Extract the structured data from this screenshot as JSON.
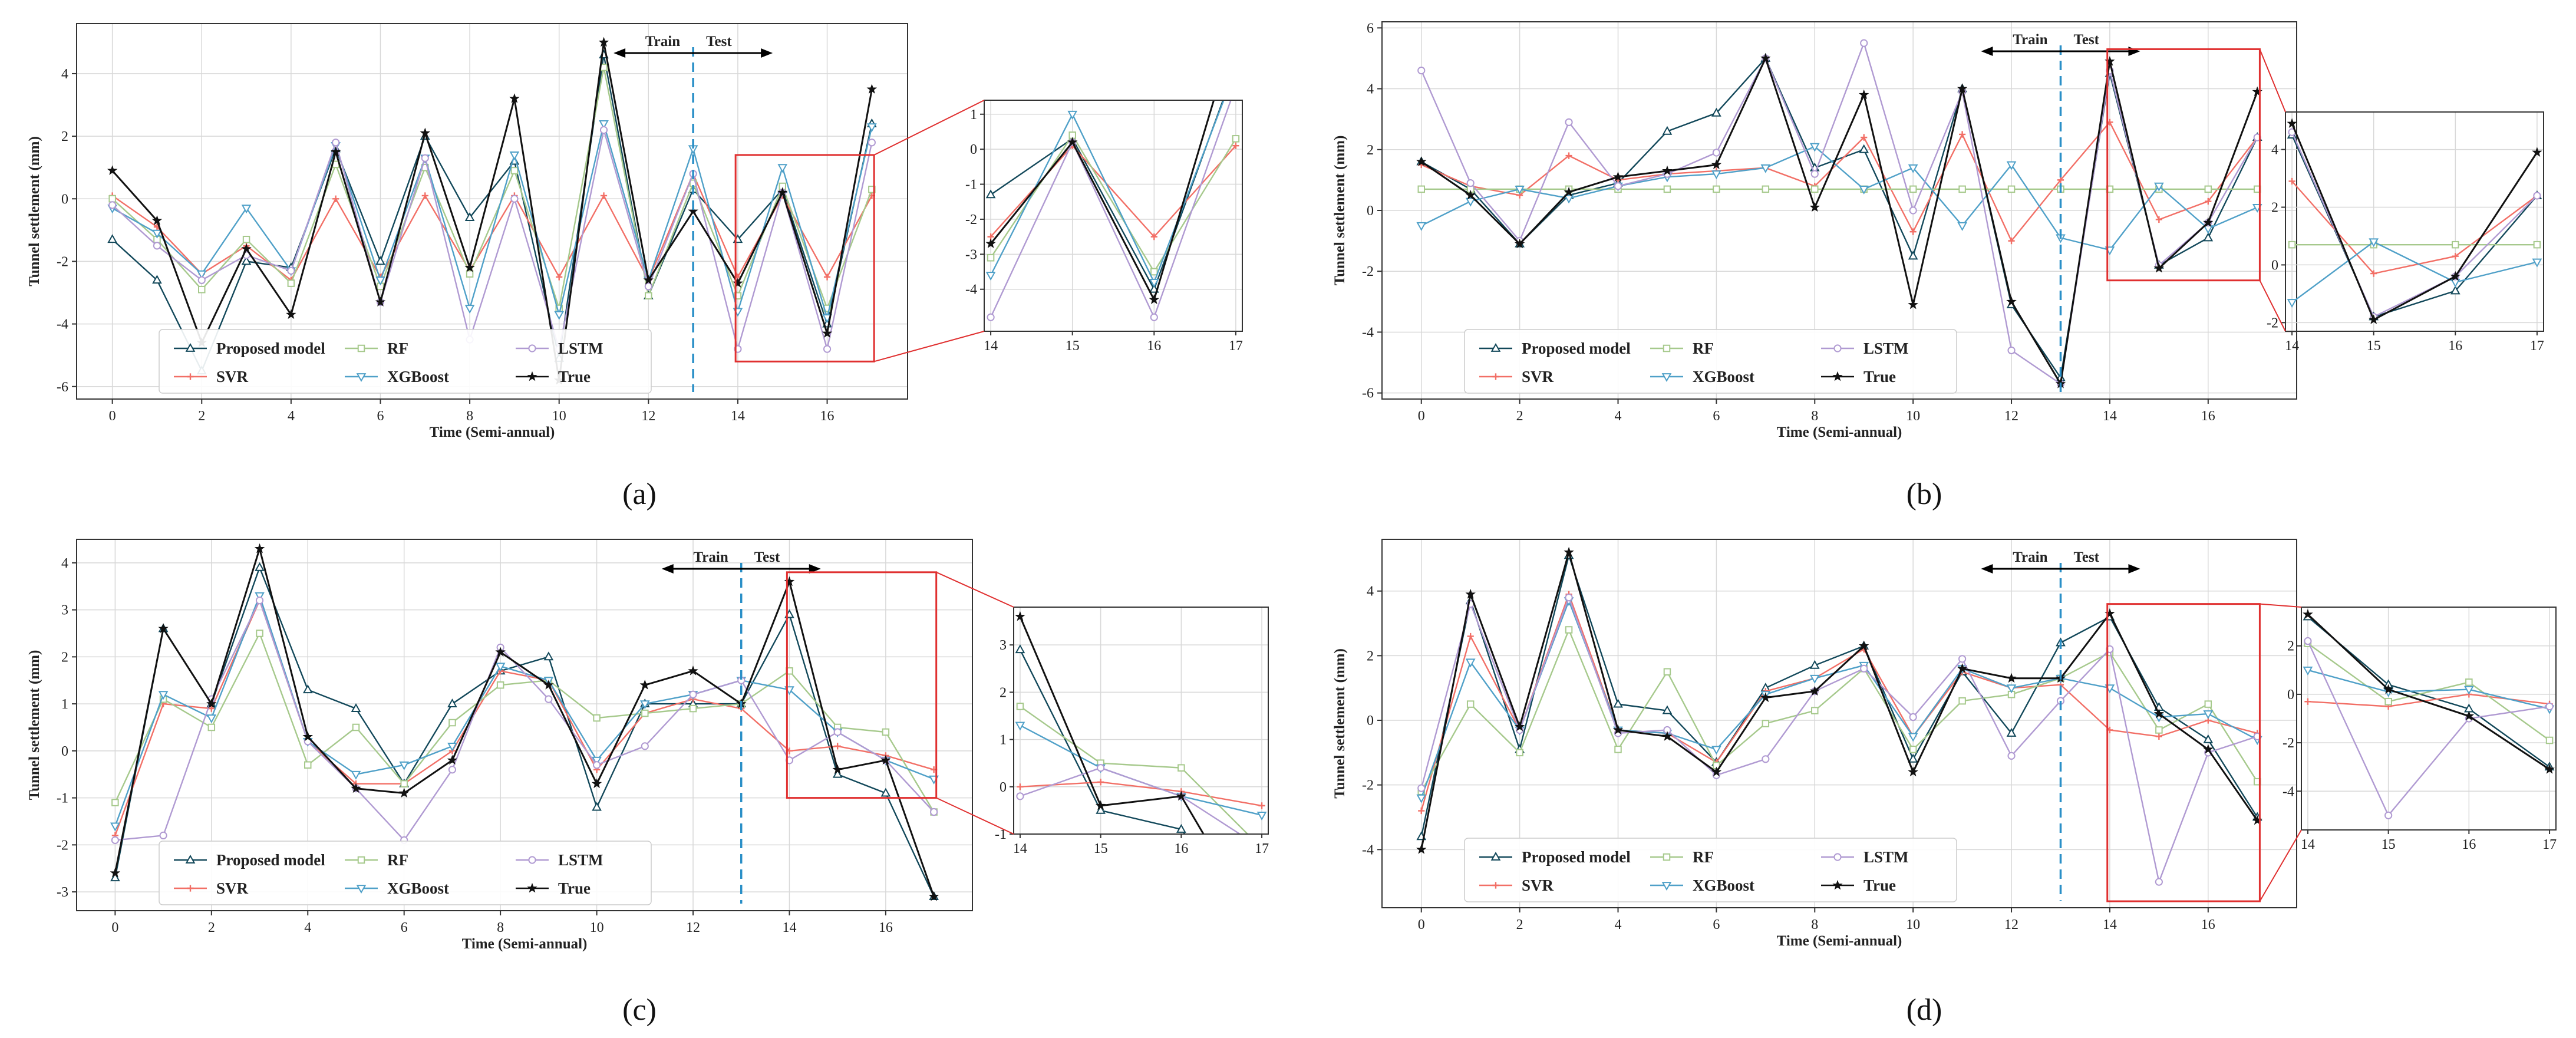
{
  "figure": {
    "series_names": [
      "Proposed model",
      "SVR",
      "RF",
      "XGBoost",
      "LSTM",
      "True"
    ],
    "series_colors": {
      "Proposed model": "#12485a",
      "SVR": "#f26f66",
      "RF": "#a6c98c",
      "XGBoost": "#4fa0c8",
      "LSTM": "#b09ad2",
      "True": "#111111"
    },
    "axis_color": "#333333",
    "grid_color": "#d8d8d8",
    "split_color": "#2a8fc7",
    "zoom_color": "#e03030"
  },
  "chart_data": [
    {
      "panel_label": "(a)",
      "type": "line",
      "xlabel": "Time (Semi-annual)",
      "ylabel": "Tunnel settlement (mm)",
      "xlim": [
        -0.8,
        17.8
      ],
      "ylim": [
        -6.4,
        5.6
      ],
      "xticks": [
        0,
        2,
        4,
        6,
        8,
        10,
        12,
        14,
        16
      ],
      "yticks": [
        -6,
        -4,
        -2,
        0,
        2,
        4
      ],
      "split_x": 13,
      "train_label": "Train",
      "test_label": "Test",
      "zoom": {
        "x_range": [
          14,
          17
        ],
        "ylim": [
          -5.2,
          1.4
        ],
        "xticks": [
          14,
          15,
          16,
          17
        ],
        "yticks": [
          -4,
          -3,
          -2,
          -1,
          0,
          1
        ]
      },
      "x": [
        0,
        1,
        2,
        3,
        4,
        5,
        6,
        7,
        8,
        9,
        10,
        11,
        12,
        13,
        14,
        15,
        16,
        17
      ],
      "series": [
        {
          "name": "Proposed model",
          "marker": "triangle",
          "values": [
            -1.3,
            -2.6,
            -5.5,
            -2.0,
            -2.2,
            1.6,
            -2.0,
            2.0,
            -0.6,
            1.2,
            -5.1,
            4.6,
            -3.1,
            0.3,
            -1.3,
            0.3,
            -4.0,
            2.4
          ]
        },
        {
          "name": "SVR",
          "marker": "plus",
          "values": [
            0.1,
            -0.9,
            -2.4,
            -1.5,
            -2.6,
            0.0,
            -2.5,
            0.1,
            -2.3,
            0.1,
            -2.5,
            0.1,
            -2.6,
            0.8,
            -2.5,
            0.1,
            -2.5,
            0.1
          ]
        },
        {
          "name": "RF",
          "marker": "square",
          "values": [
            0.0,
            -1.3,
            -2.9,
            -1.3,
            -2.7,
            1.1,
            -2.8,
            1.0,
            -2.4,
            0.9,
            -3.5,
            4.2,
            -3.1,
            0.5,
            -3.1,
            0.4,
            -3.5,
            0.3
          ]
        },
        {
          "name": "XGBoost",
          "marker": "triangle-down",
          "values": [
            -0.3,
            -1.1,
            -2.4,
            -0.3,
            -2.3,
            1.7,
            -2.6,
            1.3,
            -3.5,
            1.4,
            -3.7,
            2.4,
            -2.6,
            1.6,
            -3.6,
            1.0,
            -3.8,
            2.3
          ]
        },
        {
          "name": "LSTM",
          "marker": "circle",
          "values": [
            -0.2,
            -1.5,
            -2.6,
            -1.8,
            -2.3,
            1.8,
            -3.3,
            1.3,
            -4.5,
            0.0,
            -4.8,
            2.2,
            -2.8,
            0.8,
            -4.8,
            0.2,
            -4.8,
            1.8
          ]
        },
        {
          "name": "True",
          "marker": "star",
          "values": [
            0.9,
            -0.7,
            -4.6,
            -1.6,
            -3.7,
            1.5,
            -3.3,
            2.1,
            -2.2,
            3.2,
            -5.8,
            5.0,
            -2.6,
            -0.4,
            -2.7,
            0.2,
            -4.3,
            3.5
          ]
        }
      ]
    },
    {
      "panel_label": "(b)",
      "type": "line",
      "xlabel": "Time (Semi-annual)",
      "ylabel": "Tunnel settlement (mm)",
      "xlim": [
        -0.8,
        17.8
      ],
      "ylim": [
        -6.2,
        6.2
      ],
      "xticks": [
        0,
        2,
        4,
        6,
        8,
        10,
        12,
        14,
        16
      ],
      "yticks": [
        -6,
        -4,
        -2,
        0,
        2,
        4,
        6
      ],
      "split_x": 13,
      "train_label": "Train",
      "test_label": "Test",
      "zoom": {
        "x_range": [
          14,
          17
        ],
        "ylim": [
          -2.3,
          5.3
        ],
        "xticks": [
          14,
          15,
          16,
          17
        ],
        "yticks": [
          -2,
          0,
          2,
          4
        ]
      },
      "x": [
        0,
        1,
        2,
        3,
        4,
        5,
        6,
        7,
        8,
        9,
        10,
        11,
        12,
        13,
        14,
        15,
        16,
        17
      ],
      "series": [
        {
          "name": "Proposed model",
          "marker": "triangle",
          "values": [
            1.6,
            0.7,
            -1.1,
            0.5,
            0.9,
            2.6,
            3.2,
            5.0,
            1.4,
            2.0,
            -1.5,
            4.0,
            -3.1,
            -5.5,
            4.5,
            -1.8,
            -0.9,
            2.4
          ]
        },
        {
          "name": "SVR",
          "marker": "plus",
          "values": [
            1.5,
            0.8,
            0.5,
            1.8,
            1.0,
            1.2,
            1.3,
            1.4,
            0.8,
            2.4,
            -0.7,
            2.5,
            -1.0,
            1.0,
            2.9,
            -0.3,
            0.3,
            2.4
          ]
        },
        {
          "name": "RF",
          "marker": "square",
          "values": [
            0.7,
            0.7,
            0.7,
            0.7,
            0.7,
            0.7,
            0.7,
            0.7,
            0.7,
            0.7,
            0.7,
            0.7,
            0.7,
            0.7,
            0.7,
            0.7,
            0.7,
            0.7
          ]
        },
        {
          "name": "XGBoost",
          "marker": "triangle-down",
          "values": [
            -0.5,
            0.3,
            0.7,
            0.4,
            0.8,
            1.1,
            1.2,
            1.4,
            2.1,
            0.7,
            1.4,
            -0.5,
            1.5,
            -0.9,
            -1.3,
            0.8,
            -0.6,
            0.1
          ]
        },
        {
          "name": "LSTM",
          "marker": "circle",
          "values": [
            4.6,
            0.9,
            -1.0,
            2.9,
            0.8,
            1.2,
            1.9,
            5.0,
            1.2,
            5.5,
            0.0,
            3.9,
            -4.6,
            -5.7,
            4.6,
            -1.8,
            -0.4,
            2.4
          ]
        },
        {
          "name": "True",
          "marker": "star",
          "values": [
            1.6,
            0.5,
            -1.1,
            0.6,
            1.1,
            1.3,
            1.5,
            5.0,
            0.1,
            3.8,
            -3.1,
            4.0,
            -3.0,
            -5.7,
            4.9,
            -1.9,
            -0.4,
            3.9
          ]
        }
      ]
    },
    {
      "panel_label": "(c)",
      "type": "line",
      "xlabel": "Time (Semi-annual)",
      "ylabel": "Tunnel settlement (mm)",
      "xlim": [
        -0.8,
        17.8
      ],
      "ylim": [
        -3.4,
        4.5
      ],
      "xticks": [
        0,
        2,
        4,
        6,
        8,
        10,
        12,
        14,
        16
      ],
      "yticks": [
        -3,
        -2,
        -1,
        0,
        1,
        2,
        3,
        4
      ],
      "split_x": 13,
      "train_label": "Train",
      "test_label": "Test",
      "zoom": {
        "x_range": [
          14,
          17
        ],
        "ylim": [
          -1.0,
          3.8
        ],
        "xticks": [
          14,
          15,
          16,
          17
        ],
        "yticks": [
          -1,
          0,
          1,
          2,
          3
        ]
      },
      "x": [
        0,
        1,
        2,
        3,
        4,
        5,
        6,
        7,
        8,
        9,
        10,
        11,
        12,
        13,
        14,
        15,
        16,
        17
      ],
      "series": [
        {
          "name": "Proposed model",
          "marker": "triangle",
          "values": [
            -2.7,
            2.6,
            1.0,
            3.9,
            1.3,
            0.9,
            -0.7,
            1.0,
            1.7,
            2.0,
            -1.2,
            1.0,
            1.0,
            1.0,
            2.9,
            -0.5,
            -0.9,
            -3.1
          ]
        },
        {
          "name": "SVR",
          "marker": "plus",
          "values": [
            -1.8,
            1.0,
            0.9,
            3.2,
            0.2,
            -0.7,
            -0.7,
            0.0,
            1.7,
            1.5,
            -0.4,
            0.8,
            1.1,
            0.9,
            0.0,
            0.1,
            -0.1,
            -0.4
          ]
        },
        {
          "name": "RF",
          "marker": "square",
          "values": [
            -1.1,
            1.1,
            0.5,
            2.5,
            -0.3,
            0.5,
            -0.7,
            0.6,
            1.4,
            1.5,
            0.7,
            0.8,
            0.9,
            1.0,
            1.7,
            0.5,
            0.4,
            -1.3
          ]
        },
        {
          "name": "XGBoost",
          "marker": "triangle-down",
          "values": [
            -1.6,
            1.2,
            0.7,
            3.3,
            0.2,
            -0.5,
            -0.3,
            0.1,
            1.8,
            1.5,
            -0.2,
            1.0,
            1.2,
            1.5,
            1.3,
            0.4,
            -0.2,
            -0.6
          ]
        },
        {
          "name": "LSTM",
          "marker": "circle",
          "values": [
            -1.9,
            -1.8,
            1.1,
            3.2,
            0.2,
            -0.8,
            -1.9,
            -0.4,
            2.2,
            1.1,
            -0.3,
            0.1,
            1.2,
            1.5,
            -0.2,
            0.4,
            -0.2,
            -1.3
          ]
        },
        {
          "name": "True",
          "marker": "star",
          "values": [
            -2.6,
            2.6,
            1.0,
            4.3,
            0.3,
            -0.8,
            -0.9,
            -0.2,
            2.1,
            1.4,
            -0.7,
            1.4,
            1.7,
            1.0,
            3.6,
            -0.4,
            -0.2,
            -3.1
          ]
        }
      ]
    },
    {
      "panel_label": "(d)",
      "type": "line",
      "xlabel": "Time (Semi-annual)",
      "ylabel": "Tunnel settlement (mm)",
      "xlim": [
        -0.8,
        17.8
      ],
      "ylim": [
        -5.8,
        5.6
      ],
      "xticks": [
        0,
        2,
        4,
        6,
        8,
        10,
        12,
        14,
        16
      ],
      "yticks": [
        -4,
        -2,
        0,
        2,
        4
      ],
      "split_x": 13,
      "train_label": "Train",
      "test_label": "Test",
      "zoom": {
        "x_range": [
          14,
          17
        ],
        "ylim": [
          -5.6,
          3.6
        ],
        "xticks": [
          14,
          15,
          16,
          17
        ],
        "yticks": [
          -4,
          -2,
          0,
          2
        ]
      },
      "x": [
        0,
        1,
        2,
        3,
        4,
        5,
        6,
        7,
        8,
        9,
        10,
        11,
        12,
        13,
        14,
        15,
        16,
        17
      ],
      "series": [
        {
          "name": "Proposed model",
          "marker": "triangle",
          "values": [
            -3.6,
            3.7,
            -0.9,
            5.1,
            0.5,
            0.3,
            -1.3,
            1.0,
            1.7,
            2.3,
            -1.2,
            1.5,
            -0.4,
            2.4,
            3.2,
            0.4,
            -0.6,
            -3.0
          ]
        },
        {
          "name": "SVR",
          "marker": "plus",
          "values": [
            -2.8,
            2.6,
            -0.3,
            3.9,
            -0.3,
            -0.4,
            -1.3,
            0.9,
            1.3,
            2.2,
            -0.5,
            1.5,
            1.0,
            1.1,
            -0.3,
            -0.5,
            0.0,
            -0.4
          ]
        },
        {
          "name": "RF",
          "marker": "square",
          "values": [
            -2.2,
            0.5,
            -1.0,
            2.8,
            -0.9,
            1.5,
            -1.4,
            -0.1,
            0.3,
            1.6,
            -0.9,
            0.6,
            0.8,
            1.3,
            2.1,
            -0.3,
            0.5,
            -1.9
          ]
        },
        {
          "name": "XGBoost",
          "marker": "triangle-down",
          "values": [
            -2.4,
            1.8,
            -0.3,
            3.7,
            -0.3,
            -0.4,
            -0.9,
            0.8,
            1.3,
            1.7,
            -0.5,
            1.6,
            1.0,
            1.3,
            1.0,
            0.1,
            0.2,
            -0.6
          ]
        },
        {
          "name": "LSTM",
          "marker": "circle",
          "values": [
            -2.1,
            3.6,
            -0.3,
            3.8,
            -0.4,
            -0.3,
            -1.7,
            -1.2,
            0.9,
            1.6,
            0.1,
            1.9,
            -1.1,
            0.6,
            2.2,
            -5.0,
            -1.0,
            -0.5
          ]
        },
        {
          "name": "True",
          "marker": "star",
          "values": [
            -4.0,
            3.9,
            -0.2,
            5.2,
            -0.3,
            -0.5,
            -1.6,
            0.7,
            0.9,
            2.3,
            -1.6,
            1.6,
            1.3,
            1.3,
            3.3,
            0.2,
            -0.9,
            -3.1
          ]
        }
      ]
    }
  ]
}
